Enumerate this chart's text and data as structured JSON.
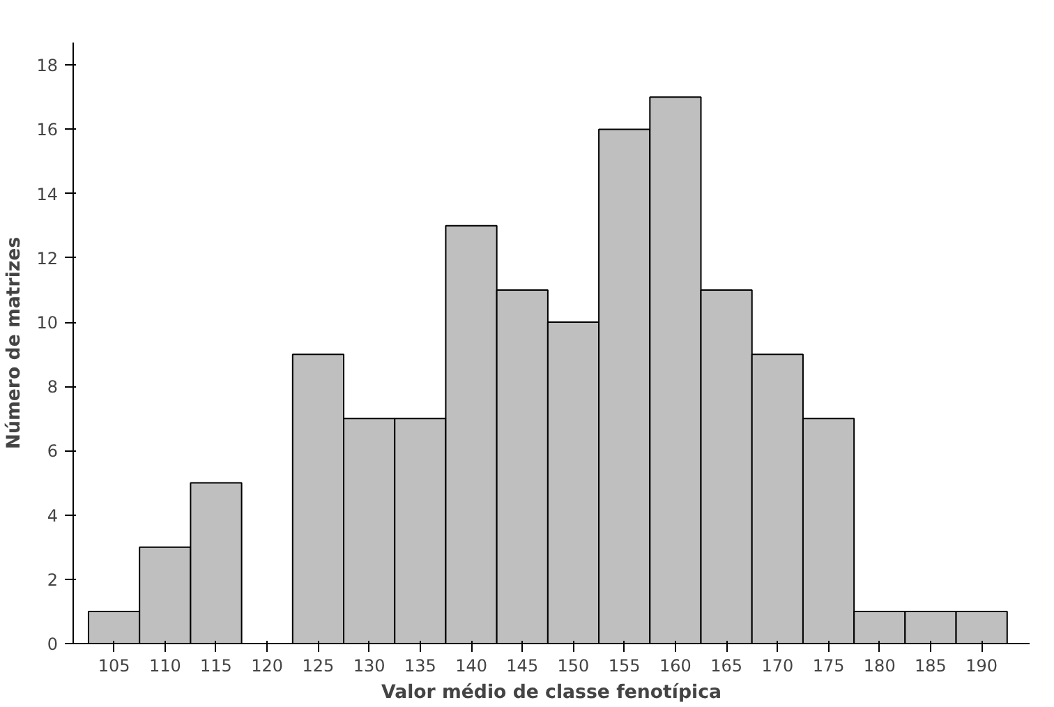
{
  "chart_data": {
    "type": "histogram",
    "xlabel": "Valor médio de classe fenotípica",
    "ylabel": "Número de matrizes",
    "bins": [
      102.5,
      107.5,
      112.5,
      117.5,
      122.5,
      127.5,
      132.5,
      137.5,
      142.5,
      147.5,
      152.5,
      157.5,
      162.5,
      167.5,
      172.5,
      177.5,
      182.5,
      187.5,
      192.5
    ],
    "values": [
      1,
      3,
      5,
      0,
      9,
      7,
      7,
      13,
      11,
      10,
      16,
      17,
      11,
      9,
      7,
      1,
      1,
      1
    ],
    "color": "#bfbfbf",
    "xlim": [
      101,
      194.7
    ],
    "xticks": [
      105,
      110,
      115,
      120,
      125,
      130,
      135,
      140,
      145,
      150,
      155,
      160,
      165,
      170,
      175,
      180,
      185,
      190
    ],
    "ylim": [
      0,
      18.7
    ],
    "yticks": [
      0,
      2,
      4,
      6,
      8,
      10,
      12,
      14,
      16,
      18
    ],
    "grid": false
  }
}
